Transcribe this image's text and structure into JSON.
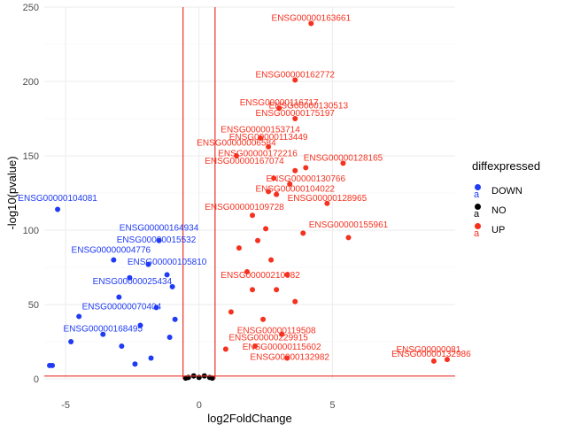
{
  "chart_data": {
    "type": "scatter",
    "title": "",
    "xlabel": "log2FoldChange",
    "ylabel": "-log10(pvalue)",
    "xlim": [
      -5.8,
      9.6
    ],
    "ylim": [
      0,
      250
    ],
    "x_ticks": [
      "-5",
      "0",
      "5"
    ],
    "x_tick_values": [
      -5,
      0,
      5
    ],
    "y_ticks": [
      "0",
      "50",
      "100",
      "150",
      "200",
      "250"
    ],
    "y_tick_values": [
      0,
      50,
      100,
      150,
      200,
      250
    ],
    "grid": true,
    "legend_position": "right",
    "thresholds": {
      "vertical": [
        -0.6,
        0.6
      ],
      "horizontal": [
        0.7
      ]
    },
    "legend": {
      "title": "diffexpressed",
      "key_letter": "a",
      "entries": [
        {
          "name": "DOWN",
          "color": "#1f3bf5"
        },
        {
          "name": "NO",
          "color": "#000000"
        },
        {
          "name": "UP",
          "color": "#f5311f"
        }
      ]
    },
    "series": [
      {
        "name": "UP",
        "color": "#f5311f",
        "points": [
          [
            4.2,
            239
          ],
          [
            3.6,
            201
          ],
          [
            3.0,
            182
          ],
          [
            3.6,
            175
          ],
          [
            2.3,
            162
          ],
          [
            2.6,
            156
          ],
          [
            1.4,
            150
          ],
          [
            5.4,
            145
          ],
          [
            4.0,
            142
          ],
          [
            3.6,
            140
          ],
          [
            2.8,
            135
          ],
          [
            3.4,
            131
          ],
          [
            2.6,
            126
          ],
          [
            2.9,
            124
          ],
          [
            4.8,
            118
          ],
          [
            2.0,
            110
          ],
          [
            2.5,
            101
          ],
          [
            5.6,
            95
          ],
          [
            1.5,
            88
          ],
          [
            2.7,
            80
          ],
          [
            3.3,
            70
          ],
          [
            2.9,
            60
          ],
          [
            3.6,
            52
          ],
          [
            2.4,
            40
          ],
          [
            3.1,
            30
          ],
          [
            2.1,
            22
          ],
          [
            8.8,
            12
          ],
          [
            9.3,
            13
          ],
          [
            1.2,
            45
          ],
          [
            1.8,
            72
          ],
          [
            2.2,
            93
          ],
          [
            1.0,
            20
          ],
          [
            3.9,
            98
          ],
          [
            2.0,
            60
          ],
          [
            3.3,
            14
          ]
        ],
        "labels": [
          {
            "text": "ENSG00000163661",
            "x": 4.2,
            "y": 239
          },
          {
            "text": "ENSG00000162772",
            "x": 3.6,
            "y": 201
          },
          {
            "text": "ENSG00000116717",
            "x": 3.0,
            "y": 182
          },
          {
            "text": "ENSG00000130513",
            "x": 4.1,
            "y": 180
          },
          {
            "text": "ENSG00000175197",
            "x": 3.6,
            "y": 175
          },
          {
            "text": "ENSG00000153714",
            "x": 2.3,
            "y": 164
          },
          {
            "text": "ENSG00000113449",
            "x": 2.6,
            "y": 159
          },
          {
            "text": "ENSG00000006584",
            "x": 1.4,
            "y": 155
          },
          {
            "text": "ENSG00000172216",
            "x": 2.2,
            "y": 148
          },
          {
            "text": "ENSG00000128165",
            "x": 5.4,
            "y": 145
          },
          {
            "text": "ENSG00000167074",
            "x": 1.7,
            "y": 143
          },
          {
            "text": "ENSG00000130766",
            "x": 4.0,
            "y": 131
          },
          {
            "text": "ENSG00000104022",
            "x": 3.6,
            "y": 124
          },
          {
            "text": "ENSG00000128965",
            "x": 4.8,
            "y": 118
          },
          {
            "text": "ENSG00000109728",
            "x": 1.7,
            "y": 112
          },
          {
            "text": "ENSG00000155961",
            "x": 5.6,
            "y": 100
          },
          {
            "text": "ENSG00000210082",
            "x": 2.3,
            "y": 66
          },
          {
            "text": "ENSG00000119508",
            "x": 2.9,
            "y": 29
          },
          {
            "text": "ENSG00000229915",
            "x": 2.6,
            "y": 24
          },
          {
            "text": "ENSG00000115602",
            "x": 3.1,
            "y": 18
          },
          {
            "text": "ENSG00000081",
            "x": 8.6,
            "y": 16
          },
          {
            "text": "ENSG00000132986",
            "x": 8.7,
            "y": 13
          },
          {
            "text": "ENSG00000132982",
            "x": 3.4,
            "y": 11
          }
        ]
      },
      {
        "name": "DOWN",
        "color": "#1f3bf5",
        "points": [
          [
            -5.3,
            114
          ],
          [
            -1.5,
            93
          ],
          [
            -3.2,
            80
          ],
          [
            -1.9,
            77
          ],
          [
            -1.2,
            70
          ],
          [
            -2.6,
            68
          ],
          [
            -1.0,
            62
          ],
          [
            -3.0,
            55
          ],
          [
            -1.6,
            48
          ],
          [
            -4.5,
            42
          ],
          [
            -2.2,
            36
          ],
          [
            -3.6,
            30
          ],
          [
            -1.1,
            28
          ],
          [
            -4.8,
            25
          ],
          [
            -2.9,
            22
          ],
          [
            -5.5,
            9
          ],
          [
            -5.6,
            9
          ],
          [
            -1.8,
            14
          ],
          [
            -0.9,
            40
          ],
          [
            -2.4,
            10
          ]
        ],
        "labels": [
          {
            "text": "ENSG00000104081",
            "x": -5.3,
            "y": 118
          },
          {
            "text": "ENSG00000164934",
            "x": -1.5,
            "y": 98
          },
          {
            "text": "ENSG00000015532",
            "x": -1.6,
            "y": 90
          },
          {
            "text": "ENSG00000004776",
            "x": -3.3,
            "y": 83
          },
          {
            "text": "ENSG00000105810",
            "x": -1.2,
            "y": 75
          },
          {
            "text": "ENSG00000025434",
            "x": -2.5,
            "y": 62
          },
          {
            "text": "ENSG00000070404",
            "x": -2.9,
            "y": 45
          },
          {
            "text": "ENSG00000168495",
            "x": -3.6,
            "y": 30
          }
        ]
      },
      {
        "name": "NO",
        "color": "#000000",
        "points": [
          [
            -0.4,
            1
          ],
          [
            -0.2,
            2
          ],
          [
            0.0,
            1
          ],
          [
            0.2,
            2
          ],
          [
            0.4,
            1
          ],
          [
            -0.5,
            0.5
          ],
          [
            0.5,
            0.5
          ]
        ]
      }
    ]
  }
}
